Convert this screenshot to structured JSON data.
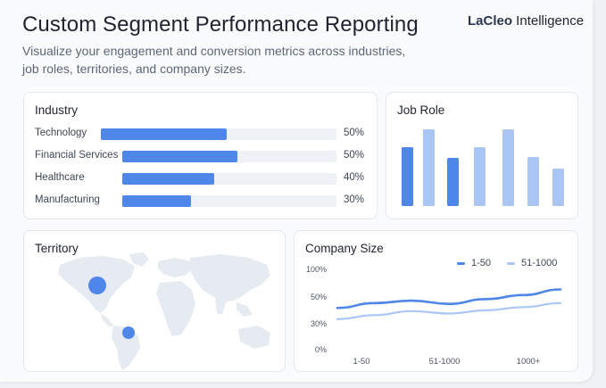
{
  "header": {
    "title": "Custom Segment Performance Reporting",
    "brand_bold": "LaCleo",
    "brand_rest": " Intelligence",
    "subtitle": "Visualize your engagement and conversion metrics across industries, job roles, territories, and company sizes."
  },
  "colors": {
    "primary_blue": "#4f87e8",
    "light_blue": "#a9c6f5",
    "track": "#eef2f6",
    "map": "#e6ebf1"
  },
  "industry": {
    "title": "Industry",
    "rows": [
      {
        "label": "Technology",
        "value_text": "50%",
        "fill": 0.5
      },
      {
        "label": "Financial Services",
        "value_text": "50%",
        "fill": 0.5
      },
      {
        "label": "Healthcare",
        "value_text": "40%",
        "fill": 0.4
      },
      {
        "label": "Manufacturing",
        "value_text": "30%",
        "fill": 0.3
      }
    ]
  },
  "job_role": {
    "title": "Job Role",
    "chart_data": {
      "type": "bar",
      "values": [
        66,
        86,
        54,
        66,
        86,
        55,
        42
      ],
      "highlight": [
        true,
        false,
        true,
        false,
        false,
        false,
        false
      ]
    }
  },
  "territory": {
    "title": "Territory",
    "markers": [
      {
        "region": "North America",
        "size": "large"
      },
      {
        "region": "South America",
        "size": "small"
      }
    ]
  },
  "company_size": {
    "title": "Company Size",
    "legend": [
      {
        "label": "1-50",
        "color": "#4f87e8"
      },
      {
        "label": "51-1000",
        "color": "#a9c6f5"
      }
    ],
    "chart_data": {
      "type": "line",
      "y_ticks": [
        "100%",
        "50%",
        "30%",
        "0%"
      ],
      "x_ticks": [
        "1-50",
        "51-1000",
        "1000+"
      ],
      "series": [
        {
          "name": "1-50",
          "values": [
            52,
            58,
            61,
            57,
            63,
            68,
            75
          ]
        },
        {
          "name": "51-1000",
          "values": [
            38,
            43,
            48,
            45,
            49,
            53,
            58
          ]
        }
      ]
    }
  }
}
